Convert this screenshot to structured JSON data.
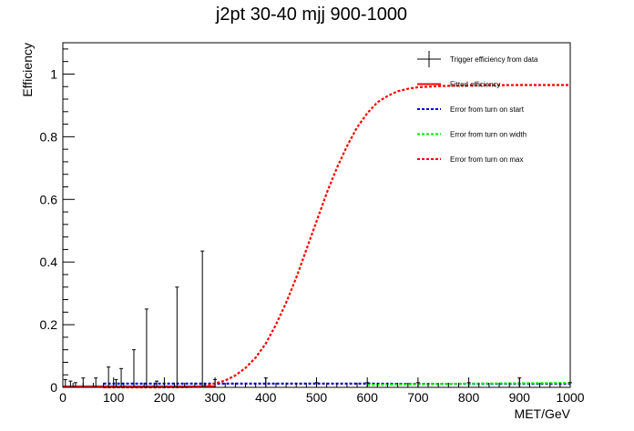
{
  "chart_data": {
    "type": "scatter",
    "title": "j2pt 30-40 mjj 900-1000",
    "xlabel": "MET/GeV",
    "ylabel": "Efficiency",
    "xlim": [
      0,
      1000
    ],
    "ylim": [
      0,
      1.1
    ],
    "x_ticks": [
      0,
      100,
      200,
      300,
      400,
      500,
      600,
      700,
      800,
      900,
      1000
    ],
    "y_ticks": [
      0,
      0.2,
      0.4,
      0.6,
      0.8,
      1
    ],
    "legend_position": "top-right",
    "data_points": {
      "name": "Trigger efficiency from data",
      "color": "#000000",
      "x": [
        5,
        15,
        25,
        40,
        65,
        90,
        105,
        115,
        140,
        165,
        185,
        225,
        275,
        300,
        400,
        500,
        600,
        700,
        800,
        900,
        1000
      ],
      "y": [
        0,
        0,
        0,
        0,
        0,
        0,
        0,
        0,
        0,
        0,
        0,
        0,
        0,
        0,
        0,
        0,
        0,
        0,
        0,
        0,
        0
      ],
      "y_err_up": [
        0.025,
        0.02,
        0.015,
        0.03,
        0.03,
        0.065,
        0.025,
        0.06,
        0.12,
        0.25,
        0.02,
        0.32,
        0.435,
        0.025,
        0.03,
        0.015,
        0.015,
        0.015,
        0.015,
        0.03,
        0.015
      ]
    },
    "series": [
      {
        "name": "Fitted efficiency",
        "color": "#ff0000",
        "style": "solid",
        "x": [
          0,
          50,
          100,
          150,
          200,
          250,
          300
        ],
        "y": [
          0.003,
          0.003,
          0.003,
          0.003,
          0.003,
          0.003,
          0.003
        ]
      },
      {
        "name": "Error from turn on start",
        "color": "#0000cc",
        "style": "dotted",
        "x": [
          80,
          200,
          300,
          400,
          500,
          600,
          700,
          800,
          900,
          1000
        ],
        "y": [
          0.012,
          0.012,
          0.012,
          0.012,
          0.012,
          0.012,
          0.011,
          0.011,
          0.011,
          0.011
        ]
      },
      {
        "name": "Error from turn on width",
        "color": "#00ee00",
        "style": "dotted",
        "x": [
          600,
          700,
          800,
          900,
          1000
        ],
        "y": [
          0.008,
          0.01,
          0.012,
          0.013,
          0.014
        ]
      },
      {
        "name": "Error from turn on max",
        "color": "#ff0000",
        "style": "dotted",
        "x": [
          80,
          150,
          200,
          250,
          280,
          300,
          320,
          340,
          360,
          380,
          400,
          420,
          440,
          460,
          480,
          500,
          520,
          540,
          560,
          580,
          600,
          620,
          640,
          660,
          680,
          700,
          750,
          800,
          900,
          1000
        ],
        "y": [
          0.0,
          0.0,
          0.0,
          0.001,
          0.005,
          0.012,
          0.022,
          0.038,
          0.062,
          0.095,
          0.14,
          0.2,
          0.27,
          0.35,
          0.44,
          0.53,
          0.62,
          0.7,
          0.77,
          0.83,
          0.875,
          0.91,
          0.93,
          0.945,
          0.953,
          0.958,
          0.962,
          0.964,
          0.965,
          0.965
        ]
      }
    ]
  }
}
